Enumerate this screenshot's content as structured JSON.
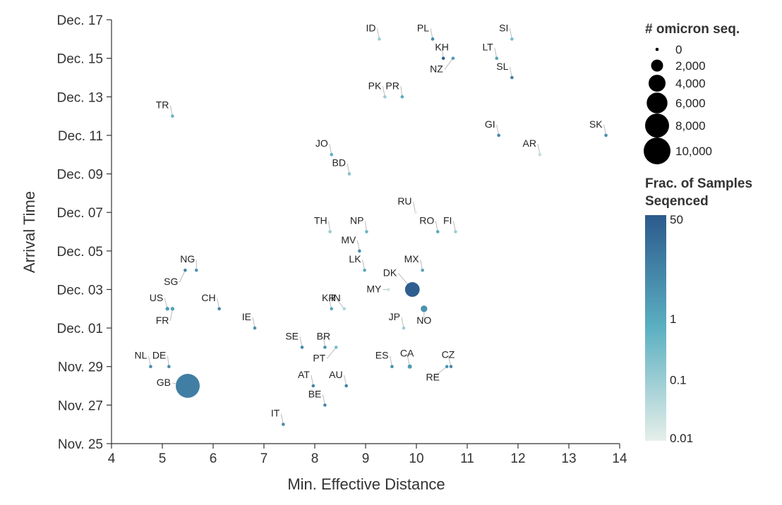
{
  "chart_data": {
    "type": "scatter",
    "xlabel": "Min. Effective Distance",
    "ylabel": "Arrival Time",
    "xlim": [
      4,
      14
    ],
    "x_ticks": [
      "4",
      "5",
      "6",
      "7",
      "8",
      "9",
      "10",
      "11",
      "12",
      "13",
      "14"
    ],
    "ylim": [
      "2021-11-25",
      "2021-12-17"
    ],
    "y_ticks": [
      {
        "date": "2021-11-25",
        "label": "Nov. 25"
      },
      {
        "date": "2021-11-27",
        "label": "Nov. 27"
      },
      {
        "date": "2021-11-29",
        "label": "Nov. 29"
      },
      {
        "date": "2021-12-01",
        "label": "Dec. 01"
      },
      {
        "date": "2021-12-03",
        "label": "Dec. 03"
      },
      {
        "date": "2021-12-05",
        "label": "Dec. 05"
      },
      {
        "date": "2021-12-07",
        "label": "Dec. 07"
      },
      {
        "date": "2021-12-09",
        "label": "Dec. 09"
      },
      {
        "date": "2021-12-11",
        "label": "Dec. 11"
      },
      {
        "date": "2021-12-13",
        "label": "Dec. 13"
      },
      {
        "date": "2021-12-15",
        "label": "Dec. 15"
      },
      {
        "date": "2021-12-17",
        "label": "Dec. 17"
      }
    ],
    "grid": false,
    "size_legend": {
      "title": "# omicron seq.",
      "entries": [
        {
          "label": "0",
          "value": 0
        },
        {
          "label": "2,000",
          "value": 2000
        },
        {
          "label": "4,000",
          "value": 4000
        },
        {
          "label": "6,000",
          "value": 6000
        },
        {
          "label": "8,000",
          "value": 8000
        },
        {
          "label": "10,000",
          "value": 10000
        }
      ]
    },
    "color_legend": {
      "title_line1": "Frac. of Samples",
      "title_line2": "Seqenced",
      "scale": "log",
      "ticks": [
        "50",
        "1",
        "0.1",
        "0.01"
      ],
      "tick_values": [
        50,
        1,
        0.1,
        0.01
      ],
      "color_low": "#e6efe9",
      "color_mid": "#5bb0c2",
      "color_high": "#2c5a8c"
    },
    "points": [
      {
        "code": "GB",
        "x": 5.5,
        "y": "2021-11-28",
        "seq": 8000,
        "frac": 8
      },
      {
        "code": "DK",
        "x": 9.92,
        "y": "2021-12-03",
        "seq": 3000,
        "frac": 40
      },
      {
        "code": "NO",
        "x": 10.15,
        "y": "2021-12-02",
        "seq": 600,
        "frac": 3
      },
      {
        "code": "CA",
        "x": 9.87,
        "y": "2021-11-29",
        "seq": 250,
        "frac": 2
      },
      {
        "code": "US",
        "x": 5.1,
        "y": "2021-12-02",
        "seq": 200,
        "frac": 2
      },
      {
        "code": "FR",
        "x": 5.2,
        "y": "2021-12-02",
        "seq": 200,
        "frac": 1.5
      },
      {
        "code": "NL",
        "x": 4.77,
        "y": "2021-11-29",
        "seq": 60,
        "frac": 4
      },
      {
        "code": "DE",
        "x": 5.13,
        "y": "2021-11-29",
        "seq": 60,
        "frac": 4
      },
      {
        "code": "IT",
        "x": 7.38,
        "y": "2021-11-26",
        "seq": 40,
        "frac": 4
      },
      {
        "code": "AT",
        "x": 7.97,
        "y": "2021-11-28",
        "seq": 50,
        "frac": 6
      },
      {
        "code": "AU",
        "x": 8.62,
        "y": "2021-11-28",
        "seq": 60,
        "frac": 7
      },
      {
        "code": "BE",
        "x": 8.2,
        "y": "2021-11-27",
        "seq": 40,
        "frac": 5
      },
      {
        "code": "SE",
        "x": 7.75,
        "y": "2021-11-30",
        "seq": 40,
        "frac": 5
      },
      {
        "code": "BR",
        "x": 8.2,
        "y": "2021-11-30",
        "seq": 30,
        "frac": 3
      },
      {
        "code": "PT",
        "x": 8.42,
        "y": "2021-11-30",
        "seq": 30,
        "frac": 0.3
      },
      {
        "code": "ES",
        "x": 9.52,
        "y": "2021-11-29",
        "seq": 40,
        "frac": 4
      },
      {
        "code": "CZ",
        "x": 10.68,
        "y": "2021-11-29",
        "seq": 40,
        "frac": 4
      },
      {
        "code": "RE",
        "x": 10.6,
        "y": "2021-11-29",
        "seq": 40,
        "frac": 3
      },
      {
        "code": "JP",
        "x": 9.75,
        "y": "2021-12-01",
        "seq": 30,
        "frac": 0.1
      },
      {
        "code": "IE",
        "x": 6.82,
        "y": "2021-12-01",
        "seq": 30,
        "frac": 3
      },
      {
        "code": "CH",
        "x": 6.12,
        "y": "2021-12-02",
        "seq": 50,
        "frac": 6
      },
      {
        "code": "KR",
        "x": 8.33,
        "y": "2021-12-02",
        "seq": 60,
        "frac": 1.2
      },
      {
        "code": "IN",
        "x": 8.58,
        "y": "2021-12-02",
        "seq": 40,
        "frac": 0.05
      },
      {
        "code": "MY",
        "x": 9.45,
        "y": "2021-12-03",
        "seq": 30,
        "frac": 0.02
      },
      {
        "code": "NG",
        "x": 5.67,
        "y": "2021-12-04",
        "seq": 30,
        "frac": 3
      },
      {
        "code": "SG",
        "x": 5.45,
        "y": "2021-12-04",
        "seq": 30,
        "frac": 6
      },
      {
        "code": "LK",
        "x": 8.98,
        "y": "2021-12-04",
        "seq": 30,
        "frac": 1
      },
      {
        "code": "MX",
        "x": 10.12,
        "y": "2021-12-04",
        "seq": 30,
        "frac": 1.5
      },
      {
        "code": "MV",
        "x": 8.88,
        "y": "2021-12-05",
        "seq": 30,
        "frac": 4
      },
      {
        "code": "TH",
        "x": 8.3,
        "y": "2021-12-06",
        "seq": 30,
        "frac": 0.1
      },
      {
        "code": "NP",
        "x": 9.02,
        "y": "2021-12-06",
        "seq": 30,
        "frac": 0.5
      },
      {
        "code": "RO",
        "x": 10.42,
        "y": "2021-12-06",
        "seq": 30,
        "frac": 1
      },
      {
        "code": "FI",
        "x": 10.77,
        "y": "2021-12-06",
        "seq": 30,
        "frac": 0.1
      },
      {
        "code": "RU",
        "x": 9.98,
        "y": "2021-12-07",
        "seq": 20,
        "frac": 0.01
      },
      {
        "code": "BD",
        "x": 8.68,
        "y": "2021-12-09",
        "seq": 30,
        "frac": 0.2
      },
      {
        "code": "JO",
        "x": 8.33,
        "y": "2021-12-10",
        "seq": 30,
        "frac": 0.7
      },
      {
        "code": "AR",
        "x": 12.43,
        "y": "2021-12-10",
        "seq": 20,
        "frac": 0.03
      },
      {
        "code": "GI",
        "x": 11.62,
        "y": "2021-12-11",
        "seq": 30,
        "frac": 5
      },
      {
        "code": "SK",
        "x": 13.73,
        "y": "2021-12-11",
        "seq": 30,
        "frac": 4
      },
      {
        "code": "TR",
        "x": 5.2,
        "y": "2021-12-12",
        "seq": 30,
        "frac": 0.5
      },
      {
        "code": "PK",
        "x": 9.38,
        "y": "2021-12-13",
        "seq": 30,
        "frac": 0.1
      },
      {
        "code": "PR",
        "x": 9.72,
        "y": "2021-12-13",
        "seq": 30,
        "frac": 1
      },
      {
        "code": "KH",
        "x": 10.53,
        "y": "2021-12-15",
        "seq": 30,
        "frac": 40
      },
      {
        "code": "NZ",
        "x": 10.72,
        "y": "2021-12-15",
        "seq": 30,
        "frac": 2
      },
      {
        "code": "LT",
        "x": 11.58,
        "y": "2021-12-15",
        "seq": 30,
        "frac": 1.5
      },
      {
        "code": "SL",
        "x": 11.88,
        "y": "2021-12-14",
        "seq": 30,
        "frac": 8
      },
      {
        "code": "ID",
        "x": 9.27,
        "y": "2021-12-16",
        "seq": 30,
        "frac": 0.1
      },
      {
        "code": "PL",
        "x": 10.32,
        "y": "2021-12-16",
        "seq": 30,
        "frac": 5
      },
      {
        "code": "SI",
        "x": 11.88,
        "y": "2021-12-16",
        "seq": 30,
        "frac": 0.3
      }
    ]
  }
}
